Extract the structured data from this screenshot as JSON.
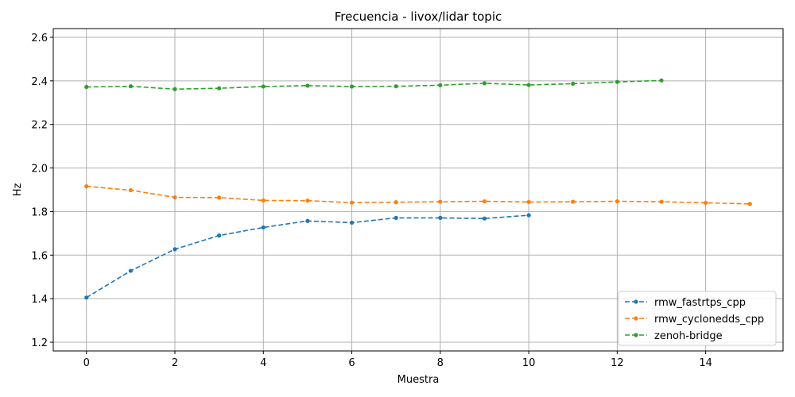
{
  "chart_data": {
    "type": "line",
    "title": "Frecuencia - livox/lidar topic",
    "xlabel": "Muestra",
    "ylabel": "Hz",
    "xlim": [
      -0.75,
      15.75
    ],
    "ylim": [
      1.16,
      2.64
    ],
    "xticks": [
      0,
      2,
      4,
      6,
      8,
      10,
      12,
      14
    ],
    "yticks": [
      1.2,
      1.4,
      1.6,
      1.8,
      2.0,
      2.2,
      2.4,
      2.6
    ],
    "xtick_labels": [
      "0",
      "2",
      "4",
      "6",
      "8",
      "10",
      "12",
      "14"
    ],
    "ytick_labels": [
      "1.2",
      "1.4",
      "1.6",
      "1.8",
      "2.0",
      "2.2",
      "2.4",
      "2.6"
    ],
    "grid": true,
    "legend_position": "bottom-right",
    "series": [
      {
        "name": "rmw_fastrtps_cpp",
        "color": "#1f77b4",
        "x": [
          0,
          1,
          2,
          3,
          4,
          5,
          6,
          7,
          8,
          9,
          10
        ],
        "y": [
          1.405,
          1.528,
          1.627,
          1.69,
          1.727,
          1.757,
          1.749,
          1.771,
          1.771,
          1.768,
          1.783
        ]
      },
      {
        "name": "rmw_cyclonedds_cpp",
        "color": "#ff7f0e",
        "x": [
          0,
          1,
          2,
          3,
          4,
          5,
          6,
          7,
          8,
          9,
          10,
          11,
          12,
          13,
          14,
          15
        ],
        "y": [
          1.916,
          1.898,
          1.865,
          1.864,
          1.851,
          1.85,
          1.841,
          1.843,
          1.845,
          1.847,
          1.844,
          1.845,
          1.847,
          1.845,
          1.84,
          1.835
        ]
      },
      {
        "name": "zenoh-bridge",
        "color": "#2ca02c",
        "x": [
          0,
          1,
          2,
          3,
          4,
          5,
          6,
          7,
          8,
          9,
          10,
          11,
          12,
          13
        ],
        "y": [
          2.372,
          2.375,
          2.362,
          2.366,
          2.374,
          2.378,
          2.374,
          2.375,
          2.38,
          2.389,
          2.381,
          2.387,
          2.395,
          2.402
        ]
      }
    ]
  }
}
